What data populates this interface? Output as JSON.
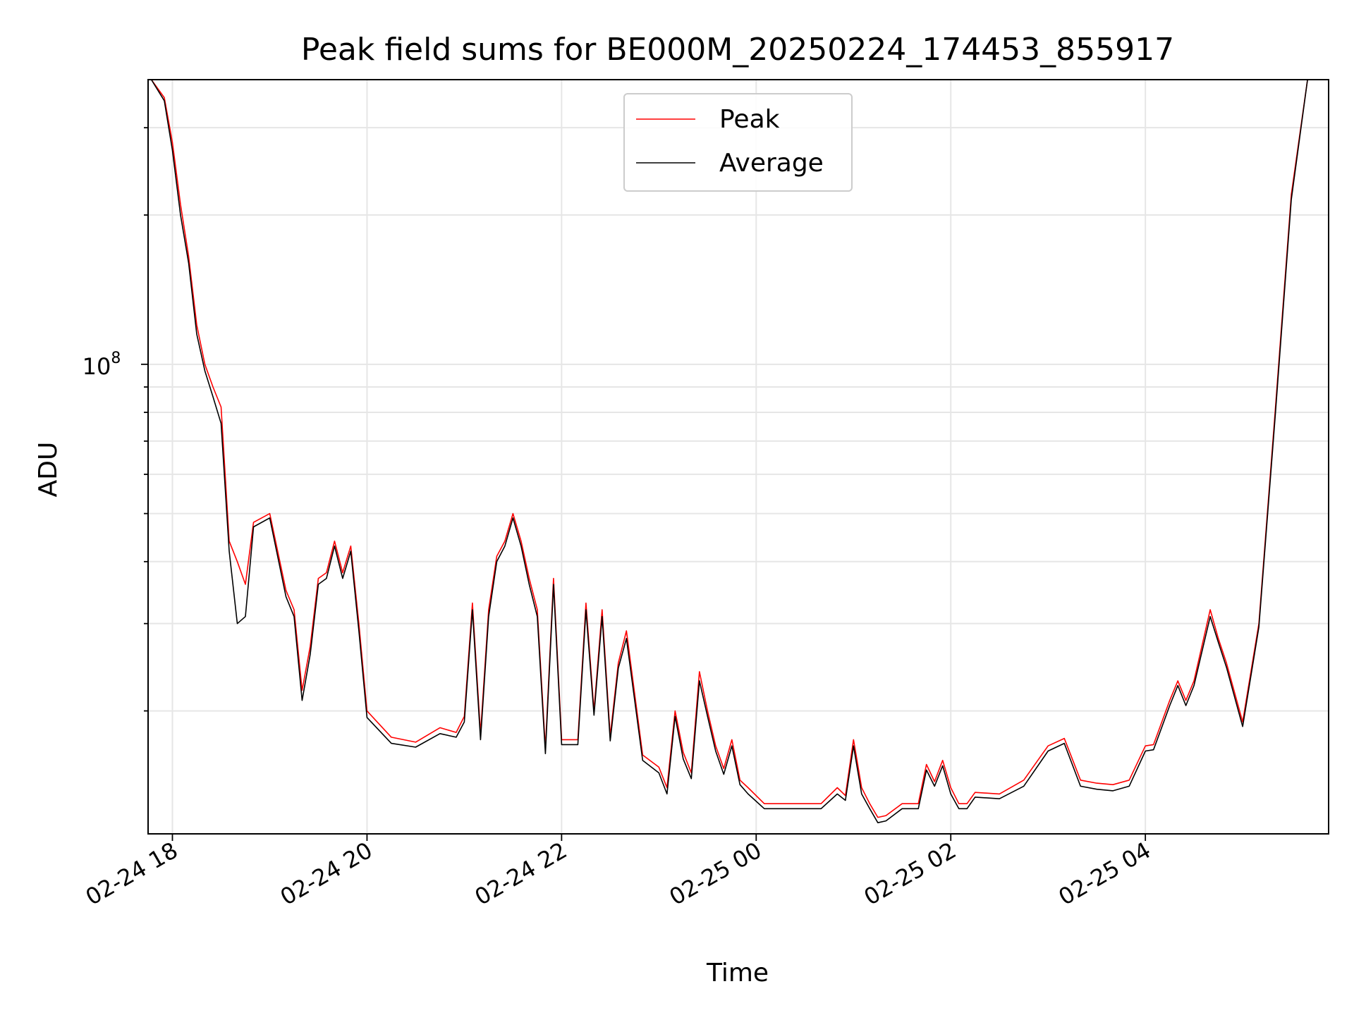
{
  "chart_data": {
    "type": "line",
    "title": "Peak field sums for BE000M_20250224_174453_855917",
    "xlabel": "Time",
    "ylabel": "ADU",
    "yscale": "log",
    "xlim": [
      "2025-02-24T17:45",
      "2025-02-25T05:53"
    ],
    "ylim": [
      11300000,
      375000000
    ],
    "grid": true,
    "legend_position": "top-center",
    "x_ticks": [
      {
        "value": "2025-02-24T18:00",
        "label": "02-24 18"
      },
      {
        "value": "2025-02-24T20:00",
        "label": "02-24 20"
      },
      {
        "value": "2025-02-24T22:00",
        "label": "02-24 22"
      },
      {
        "value": "2025-02-25T00:00",
        "label": "02-25 00"
      },
      {
        "value": "2025-02-25T02:00",
        "label": "02-25 02"
      },
      {
        "value": "2025-02-25T04:00",
        "label": "02-25 04"
      }
    ],
    "y_ticks": [
      {
        "value": 100000000,
        "base": "10",
        "exponent": "8"
      }
    ],
    "x": [
      "2025-02-24T17:47",
      "2025-02-24T17:55",
      "2025-02-24T18:00",
      "2025-02-24T18:05",
      "2025-02-24T18:10",
      "2025-02-24T18:15",
      "2025-02-24T18:20",
      "2025-02-24T18:25",
      "2025-02-24T18:30",
      "2025-02-24T18:35",
      "2025-02-24T18:40",
      "2025-02-24T18:45",
      "2025-02-24T18:50",
      "2025-02-24T19:00",
      "2025-02-24T19:10",
      "2025-02-24T19:15",
      "2025-02-24T19:20",
      "2025-02-24T19:25",
      "2025-02-24T19:30",
      "2025-02-24T19:35",
      "2025-02-24T19:40",
      "2025-02-24T19:45",
      "2025-02-24T19:50",
      "2025-02-24T19:55",
      "2025-02-24T20:00",
      "2025-02-24T20:15",
      "2025-02-24T20:30",
      "2025-02-24T20:45",
      "2025-02-24T20:55",
      "2025-02-24T21:00",
      "2025-02-24T21:05",
      "2025-02-24T21:10",
      "2025-02-24T21:15",
      "2025-02-24T21:20",
      "2025-02-24T21:25",
      "2025-02-24T21:30",
      "2025-02-24T21:35",
      "2025-02-24T21:40",
      "2025-02-24T21:45",
      "2025-02-24T21:50",
      "2025-02-24T21:55",
      "2025-02-24T22:00",
      "2025-02-24T22:10",
      "2025-02-24T22:15",
      "2025-02-24T22:20",
      "2025-02-24T22:25",
      "2025-02-24T22:30",
      "2025-02-24T22:35",
      "2025-02-24T22:40",
      "2025-02-24T22:50",
      "2025-02-24T23:00",
      "2025-02-24T23:05",
      "2025-02-24T23:10",
      "2025-02-24T23:15",
      "2025-02-24T23:20",
      "2025-02-24T23:25",
      "2025-02-24T23:30",
      "2025-02-24T23:35",
      "2025-02-24T23:40",
      "2025-02-24T23:45",
      "2025-02-24T23:50",
      "2025-02-24T23:55",
      "2025-02-25T00:05",
      "2025-02-25T00:20",
      "2025-02-25T00:40",
      "2025-02-25T00:50",
      "2025-02-25T00:55",
      "2025-02-25T01:00",
      "2025-02-25T01:05",
      "2025-02-25T01:10",
      "2025-02-25T01:15",
      "2025-02-25T01:20",
      "2025-02-25T01:30",
      "2025-02-25T01:40",
      "2025-02-25T01:45",
      "2025-02-25T01:50",
      "2025-02-25T01:55",
      "2025-02-25T02:00",
      "2025-02-25T02:05",
      "2025-02-25T02:10",
      "2025-02-25T02:15",
      "2025-02-25T02:30",
      "2025-02-25T02:45",
      "2025-02-25T03:00",
      "2025-02-25T03:10",
      "2025-02-25T03:20",
      "2025-02-25T03:30",
      "2025-02-25T03:40",
      "2025-02-25T03:50",
      "2025-02-25T04:00",
      "2025-02-25T04:05",
      "2025-02-25T04:15",
      "2025-02-25T04:20",
      "2025-02-25T04:25",
      "2025-02-25T04:30",
      "2025-02-25T04:40",
      "2025-02-25T04:45",
      "2025-02-25T04:50",
      "2025-02-25T05:00",
      "2025-02-25T05:10",
      "2025-02-25T05:20",
      "2025-02-25T05:30",
      "2025-02-25T05:40",
      "2025-02-25T05:45",
      "2025-02-25T05:53"
    ],
    "series": [
      {
        "name": "Peak",
        "color": "#ff0000",
        "values": [
          380000000,
          345000000,
          280000000,
          210000000,
          165000000,
          120000000,
          100000000,
          90000000,
          82000000,
          44000000,
          40000000,
          36000000,
          48000000,
          50000000,
          35000000,
          32000000,
          22000000,
          27000000,
          37000000,
          38000000,
          44000000,
          38000000,
          43000000,
          30000000,
          20000000,
          17700000,
          17300000,
          18500000,
          18100000,
          19500000,
          33000000,
          18000000,
          32000000,
          41000000,
          44000000,
          50000000,
          44000000,
          37000000,
          32000000,
          16800000,
          37000000,
          17500000,
          17500000,
          33000000,
          20000000,
          32000000,
          17800000,
          25000000,
          29000000,
          16300000,
          15400000,
          14000000,
          20000000,
          16500000,
          15000000,
          24000000,
          20000000,
          17000000,
          15300000,
          17500000,
          14500000,
          14000000,
          13000000,
          13000000,
          13000000,
          14000000,
          13500000,
          17500000,
          14000000,
          13000000,
          12200000,
          12300000,
          13000000,
          13000000,
          15600000,
          14400000,
          15900000,
          14000000,
          13000000,
          13000000,
          13700000,
          13600000,
          14500000,
          17000000,
          17600000,
          14500000,
          14300000,
          14200000,
          14500000,
          17000000,
          17100000,
          21000000,
          23000000,
          21000000,
          23000000,
          32000000,
          28000000,
          25000000,
          19000000,
          30000000,
          80000000,
          220000000,
          375000000,
          375000000,
          375000000
        ]
      },
      {
        "name": "Average",
        "color": "#000000",
        "values": [
          375000000,
          340000000,
          270000000,
          200000000,
          160000000,
          115000000,
          97000000,
          86000000,
          76000000,
          42000000,
          30000000,
          31000000,
          47000000,
          49000000,
          34000000,
          31000000,
          21000000,
          26000000,
          36000000,
          37000000,
          43000000,
          37000000,
          42000000,
          29000000,
          19400000,
          17200000,
          16900000,
          18000000,
          17700000,
          19000000,
          32000000,
          17500000,
          31000000,
          40000000,
          43000000,
          49000000,
          43000000,
          36000000,
          31000000,
          16400000,
          36000000,
          17100000,
          17100000,
          32000000,
          19600000,
          31000000,
          17400000,
          24400000,
          28000000,
          15900000,
          15000000,
          13600000,
          19500000,
          16000000,
          14600000,
          23000000,
          19500000,
          16600000,
          14900000,
          17000000,
          14200000,
          13600000,
          12700000,
          12700000,
          12700000,
          13600000,
          13200000,
          17000000,
          13600000,
          12700000,
          11900000,
          12000000,
          12700000,
          12700000,
          15200000,
          14100000,
          15500000,
          13600000,
          12700000,
          12700000,
          13400000,
          13300000,
          14100000,
          16600000,
          17200000,
          14100000,
          13900000,
          13800000,
          14100000,
          16600000,
          16700000,
          20500000,
          22500000,
          20500000,
          22500000,
          31000000,
          27500000,
          24500000,
          18600000,
          29500000,
          78000000,
          215000000,
          375000000,
          375000000,
          375000000
        ]
      }
    ]
  }
}
